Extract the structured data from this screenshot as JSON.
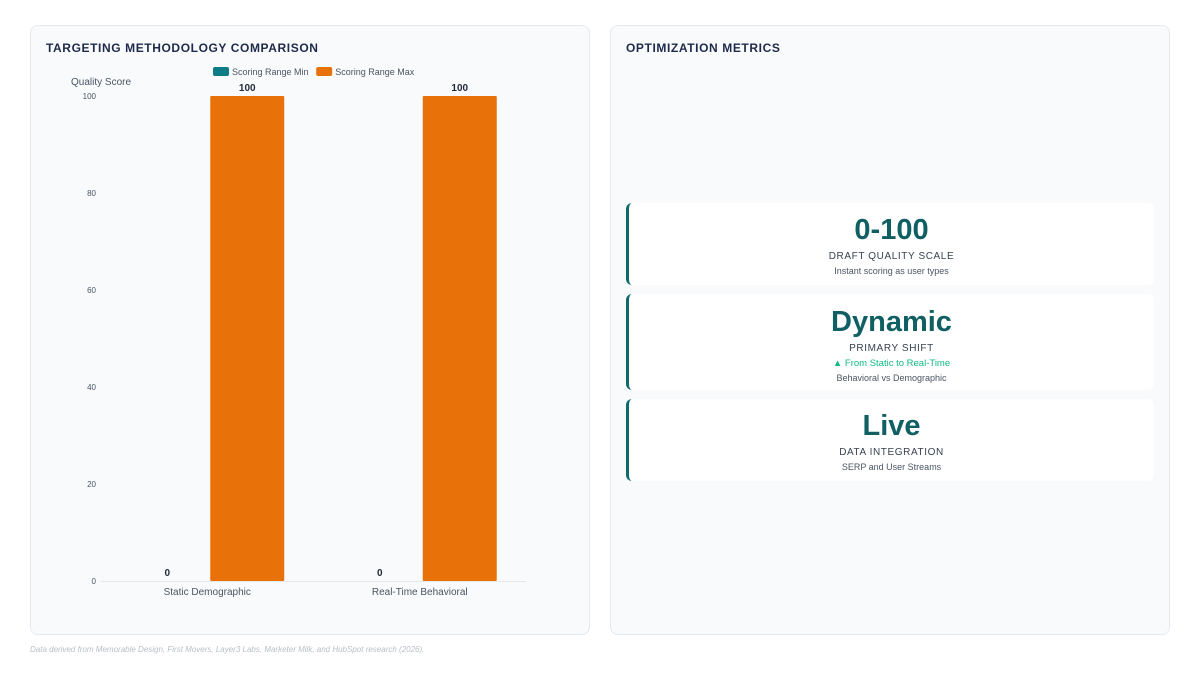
{
  "left_panel": {
    "title": "TARGETING METHODOLOGY COMPARISON"
  },
  "right_panel": {
    "title": "OPTIMIZATION METRICS",
    "cards": [
      {
        "value": "0-100",
        "label": "DRAFT QUALITY SCALE",
        "sub": "Instant scoring as user types"
      },
      {
        "value": "Dynamic",
        "label": "PRIMARY SHIFT",
        "delta": "▲ From Static to Real-Time",
        "sub": "Behavioral vs Demographic"
      },
      {
        "value": "Live",
        "label": "DATA INTEGRATION",
        "sub": "SERP and User Streams"
      }
    ]
  },
  "footer": "Data derived from Memorable Design, First Movers, Layer3 Labs, Marketer Milk, and HubSpot research (2026).",
  "chart_data": {
    "type": "bar",
    "categories": [
      "Static Demographic",
      "Real-Time Behavioral"
    ],
    "series": [
      {
        "name": "Scoring Range Min",
        "values": [
          0,
          0
        ],
        "color": "#0e7c86"
      },
      {
        "name": "Scoring Range Max",
        "values": [
          100,
          100
        ],
        "color": "#e8710a"
      }
    ],
    "ylabel": "Quality Score",
    "ylim": [
      0,
      100
    ],
    "yticks": [
      0,
      20,
      40,
      60,
      80,
      100
    ],
    "legend": "top-center",
    "grid": false,
    "data_labels": true
  }
}
